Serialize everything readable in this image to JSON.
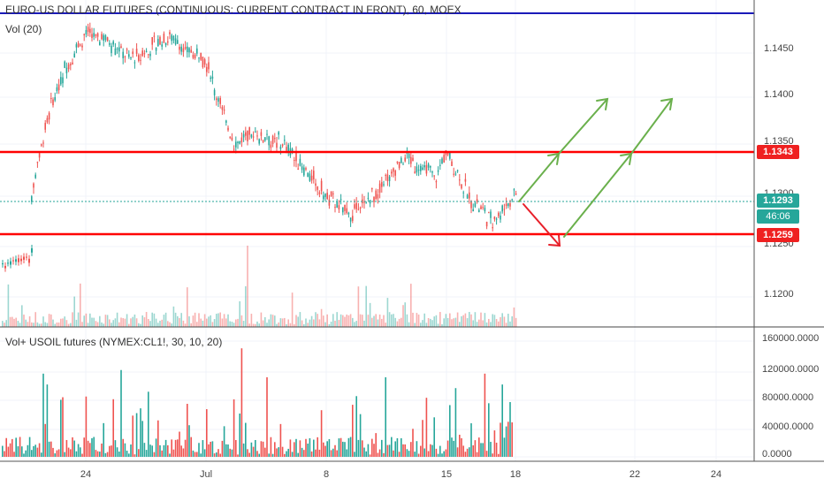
{
  "main_legend": {
    "title": "EURO-US DOLLAR FUTURES (CONTINUOUS: CURRENT CONTRACT IN FRONT), 60, MOEX",
    "vol": "Vol (20)"
  },
  "lower_legend": "Vol+ USOIL futures (NYMEX:CL1!, 30, 10, 20)",
  "colors": {
    "up": "#26a69a",
    "down": "#ef5350",
    "level_line": "#ff0000",
    "top_line": "#1a1ab8",
    "arrow_up": "#6ab04c",
    "arrow_down": "#e8202a",
    "price_line": "#26a69a"
  },
  "price_axis": {
    "ticks": [
      "1.1450",
      "1.1400",
      "1.1350",
      "1.1300",
      "1.1250",
      "1.1200"
    ]
  },
  "price_tags": {
    "resistance": "1.1343",
    "current": "1.1293",
    "countdown": "46:06",
    "support": "1.1259"
  },
  "volume_axis": {
    "ticks": [
      "160000.0000",
      "120000.0000",
      "80000.0000",
      "40000.0000",
      "0.0000"
    ]
  },
  "time_axis": {
    "ticks": [
      "24",
      "Jul",
      "8",
      "15",
      "18",
      "22",
      "24"
    ]
  },
  "chart_data": {
    "type": "candlestick",
    "resistance": 1.1343,
    "support": 1.1259,
    "last": 1.1293,
    "price_range": [
      1.1165,
      1.1495
    ],
    "path": [
      {
        "x": "day 19.5",
        "y": 1.129
      },
      {
        "x": "day 20.2",
        "y": 1.133
      },
      {
        "x": "day 21",
        "y": 1.1385
      },
      {
        "x": "day 22.5",
        "y": 1.144
      },
      {
        "x": "day 24",
        "y": 1.147
      },
      {
        "x": "day 25.5",
        "y": 1.1465
      },
      {
        "x": "day 27",
        "y": 1.1445
      },
      {
        "x": "day 29",
        "y": 1.147
      },
      {
        "x": "Jul 1",
        "y": 1.144
      },
      {
        "x": "Jul 2",
        "y": 1.14
      },
      {
        "x": "Jul 3",
        "y": 1.135
      },
      {
        "x": "Jul 4.5",
        "y": 1.136
      },
      {
        "x": "Jul 6",
        "y": 1.135
      },
      {
        "x": "Jul 7",
        "y": 1.132
      },
      {
        "x": "Jul 8",
        "y": 1.129
      },
      {
        "x": "Jul 9",
        "y": 1.127
      },
      {
        "x": "Jul 10",
        "y": 1.13
      },
      {
        "x": "Jul 11",
        "y": 1.1335
      },
      {
        "x": "Jul 12",
        "y": 1.132
      },
      {
        "x": "Jul 13",
        "y": 1.1315
      },
      {
        "x": "Jul 15",
        "y": 1.134
      },
      {
        "x": "Jul 16",
        "y": 1.129
      },
      {
        "x": "Jul 17",
        "y": 1.1262
      },
      {
        "x": "Jul 18",
        "y": 1.1293
      }
    ]
  }
}
